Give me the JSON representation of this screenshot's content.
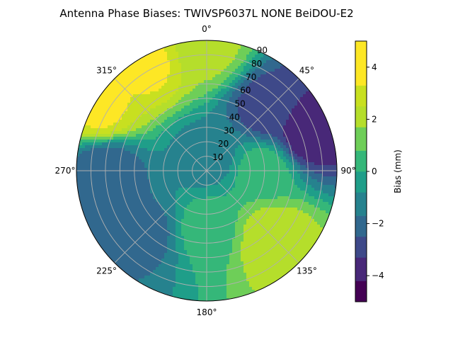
{
  "chart_data": {
    "type": "heatmap",
    "projection": "polar",
    "title": "Antenna Phase Biases: TWIVSP6037L     NONE BeiDOU-E2",
    "theta_ticks": [
      "0°",
      "45°",
      "90°",
      "135°",
      "180°",
      "225°",
      "270°",
      "315°"
    ],
    "theta_direction": "clockwise",
    "theta_zero": "top",
    "r_ticks": [
      "10",
      "20",
      "30",
      "40",
      "50",
      "60",
      "70",
      "80",
      "90"
    ],
    "r_range": [
      0,
      90
    ],
    "grid": true,
    "colorbar": {
      "label": "Bias (mm)",
      "range": [
        -5,
        5
      ],
      "ticks": [
        "−4",
        "−2",
        "0",
        "2",
        "4"
      ],
      "levels": [
        -5,
        -4.2,
        -3.3,
        -2.5,
        -1.7,
        -0.8,
        0,
        0.8,
        1.7,
        2.5,
        3.3,
        4.2,
        5
      ],
      "colors": [
        "#440154",
        "#482878",
        "#3e4989",
        "#31688e",
        "#26828e",
        "#1f9e89",
        "#35b779",
        "#6ece58",
        "#b5de2b",
        "#c8e020",
        "#fde725",
        "#fde725"
      ]
    },
    "bias_field_samples": [
      {
        "azimuth": 0,
        "zenith": 10,
        "bias": -1.2
      },
      {
        "azimuth": 45,
        "zenith": 60,
        "bias": -3.0
      },
      {
        "azimuth": 70,
        "zenith": 75,
        "bias": -4.0
      },
      {
        "azimuth": 90,
        "zenith": 40,
        "bias": 0.5
      },
      {
        "azimuth": 135,
        "zenith": 65,
        "bias": 2.5
      },
      {
        "azimuth": 180,
        "zenith": 40,
        "bias": 0.4
      },
      {
        "azimuth": 225,
        "zenith": 60,
        "bias": -2.0
      },
      {
        "azimuth": 270,
        "zenith": 70,
        "bias": -2.5
      },
      {
        "azimuth": 300,
        "zenith": 85,
        "bias": 3.5
      },
      {
        "azimuth": 330,
        "zenith": 85,
        "bias": 3.5
      },
      {
        "azimuth": 0,
        "zenith": 85,
        "bias": 2.0
      }
    ]
  }
}
